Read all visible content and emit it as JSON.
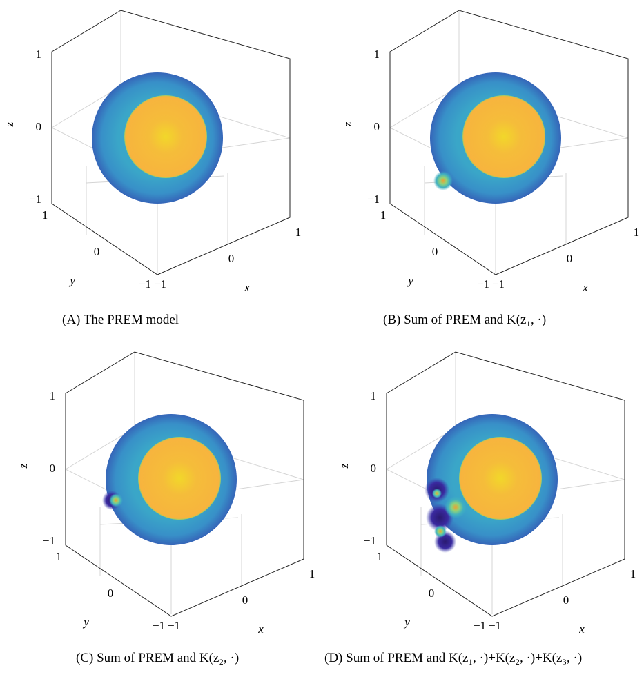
{
  "panels": [
    {
      "label": "(A)",
      "caption": "The PREM model",
      "zticks": [
        "1",
        "0",
        "−1"
      ],
      "yticks": [
        "1",
        "0",
        "−1"
      ],
      "xticks": [
        "−1",
        "0",
        "1"
      ],
      "xlabel": "x",
      "ylabel": "y",
      "zlabel": "z"
    },
    {
      "label": "(B)",
      "caption": "Sum of PREM and K(z₁, ·)",
      "zticks": [
        "1",
        "0",
        "−1"
      ],
      "yticks": [
        "1",
        "0",
        "−1"
      ],
      "xticks": [
        "−1",
        "0",
        "1"
      ],
      "xlabel": "x",
      "ylabel": "y",
      "zlabel": "z"
    },
    {
      "label": "(C)",
      "caption": "Sum of PREM and K(z₂, ·)",
      "zticks": [
        "1",
        "0",
        "−1"
      ],
      "yticks": [
        "1",
        "0",
        "−1"
      ],
      "xticks": [
        "−1",
        "0",
        "1"
      ],
      "xlabel": "x",
      "ylabel": "y",
      "zlabel": "z"
    },
    {
      "label": "(D)",
      "caption": "Sum of PREM and K(z₁, ·)+K(z₂, ·)+K(z₃, ·)",
      "zticks": [
        "1",
        "0",
        "−1"
      ],
      "yticks": [
        "1",
        "0",
        "−1"
      ],
      "xticks": [
        "−1",
        "0",
        "1"
      ],
      "xlabel": "x",
      "ylabel": "y",
      "zlabel": "z"
    }
  ]
}
